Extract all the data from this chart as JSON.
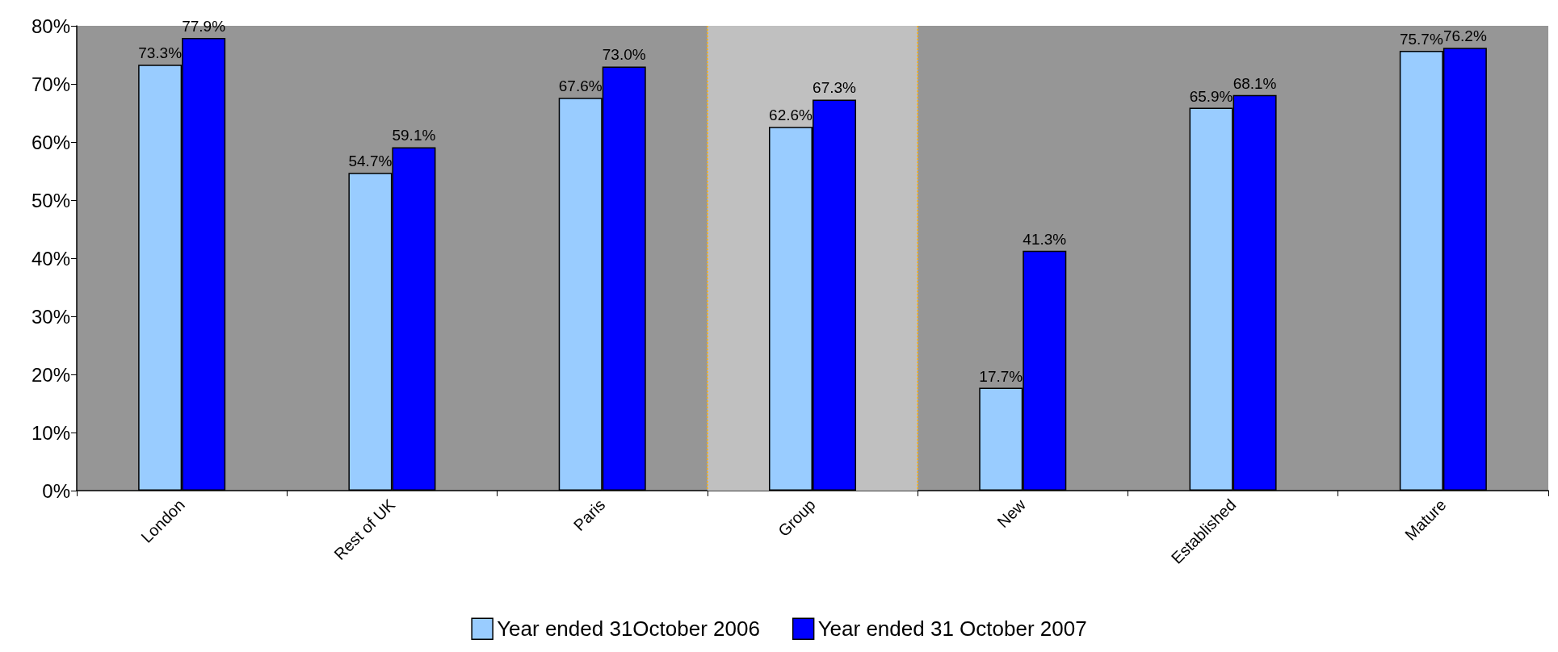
{
  "chart_data": {
    "type": "bar",
    "categories": [
      "London",
      "Rest of UK",
      "Paris",
      "Group",
      "New",
      "Established",
      "Mature"
    ],
    "series": [
      {
        "name": "Year ended 31October 2006",
        "color": "#99ccff",
        "values": [
          73.3,
          54.7,
          67.6,
          62.6,
          17.7,
          65.9,
          75.7
        ],
        "value_labels": [
          "73.3%",
          "54.7%",
          "67.6%",
          "62.6%",
          "17.7%",
          "65.9%",
          "75.7%"
        ]
      },
      {
        "name": "Year ended 31 October 2007",
        "color": "#0000ff",
        "values": [
          77.9,
          59.1,
          73.0,
          67.3,
          41.3,
          68.1,
          76.2
        ],
        "value_labels": [
          "77.9%",
          "59.1%",
          "73.0%",
          "67.3%",
          "41.3%",
          "68.1%",
          "76.2%"
        ]
      }
    ],
    "ylim": [
      0,
      80
    ],
    "yticks": [
      {
        "value": 0,
        "label": "0%"
      },
      {
        "value": 10,
        "label": "10%"
      },
      {
        "value": 20,
        "label": "20%"
      },
      {
        "value": 30,
        "label": "30%"
      },
      {
        "value": 40,
        "label": "40%"
      },
      {
        "value": 50,
        "label": "50%"
      },
      {
        "value": 60,
        "label": "60%"
      },
      {
        "value": 70,
        "label": "70%"
      },
      {
        "value": 80,
        "label": "80%"
      }
    ],
    "bands": [
      {
        "axis": "x",
        "from": "Group",
        "to": "Group",
        "color": "#c0c0c0"
      }
    ],
    "grid": false,
    "legend": "bottom"
  }
}
